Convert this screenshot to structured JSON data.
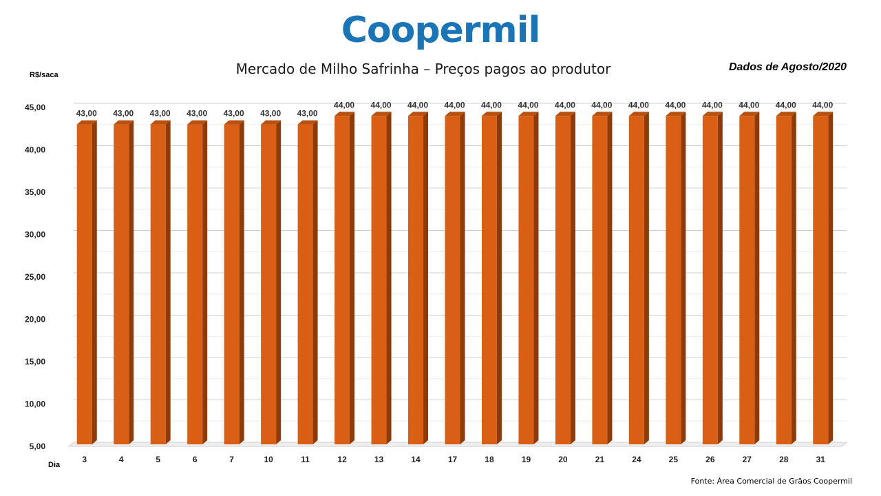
{
  "header": {
    "logo_text": "Coopermil",
    "period": "Dados de Agosto/2020"
  },
  "footer": {
    "source": "Fonte:  Área Comercial de Grãos Coopermil"
  },
  "colors": {
    "bar_front": "#d85f14",
    "bar_side": "#8e3b09",
    "bar_top": "#b8500f",
    "logo": "#1a75b8",
    "grid": "#d9d9d9"
  },
  "chart_data": {
    "type": "bar",
    "title": "Mercado de Milho Safrinha – Preços pagos ao produtor",
    "xlabel": "Dia",
    "ylabel": "R$/saca",
    "categories": [
      "3",
      "4",
      "5",
      "6",
      "7",
      "10",
      "11",
      "12",
      "13",
      "14",
      "17",
      "18",
      "19",
      "20",
      "21",
      "24",
      "25",
      "26",
      "27",
      "28",
      "31"
    ],
    "values": [
      43,
      43,
      43,
      43,
      43,
      43,
      43,
      44,
      44,
      44,
      44,
      44,
      44,
      44,
      44,
      44,
      44,
      44,
      44,
      44,
      44
    ],
    "data_labels": [
      "43,00",
      "43,00",
      "43,00",
      "43,00",
      "43,00",
      "43,00",
      "43,00",
      "44,00",
      "44,00",
      "44,00",
      "44,00",
      "44,00",
      "44,00",
      "44,00",
      "44,00",
      "44,00",
      "44,00",
      "44,00",
      "44,00",
      "44,00",
      "44,00"
    ],
    "yticks": [
      5,
      10,
      15,
      20,
      25,
      30,
      35,
      40,
      45
    ],
    "ytick_labels": [
      "5,00",
      "10,00",
      "15,00",
      "20,00",
      "25,00",
      "30,00",
      "35,00",
      "40,00",
      "45,00"
    ],
    "ylim": [
      5,
      45
    ],
    "grid": true,
    "legend": false
  }
}
